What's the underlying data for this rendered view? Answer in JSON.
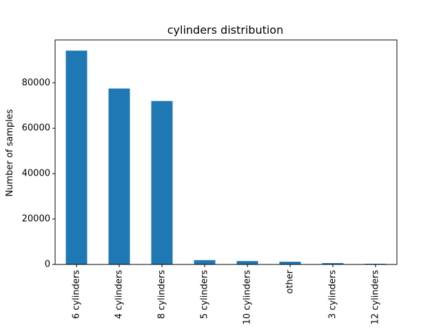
{
  "chart_data": {
    "type": "bar",
    "title": "cylinders distribution",
    "xlabel": "",
    "ylabel": "Number of samples",
    "categories": [
      "6 cylinders",
      "4 cylinders",
      "8 cylinders",
      "5 cylinders",
      "10 cylinders",
      "other",
      "3 cylinders",
      "12 cylinders"
    ],
    "values": [
      94200,
      77500,
      72000,
      1900,
      1500,
      1200,
      600,
      300
    ],
    "ylim": [
      0,
      98900
    ],
    "yticks": [
      0,
      20000,
      40000,
      60000,
      80000
    ],
    "bar_color": "#1f77b4",
    "grid": false,
    "legend": "none"
  }
}
